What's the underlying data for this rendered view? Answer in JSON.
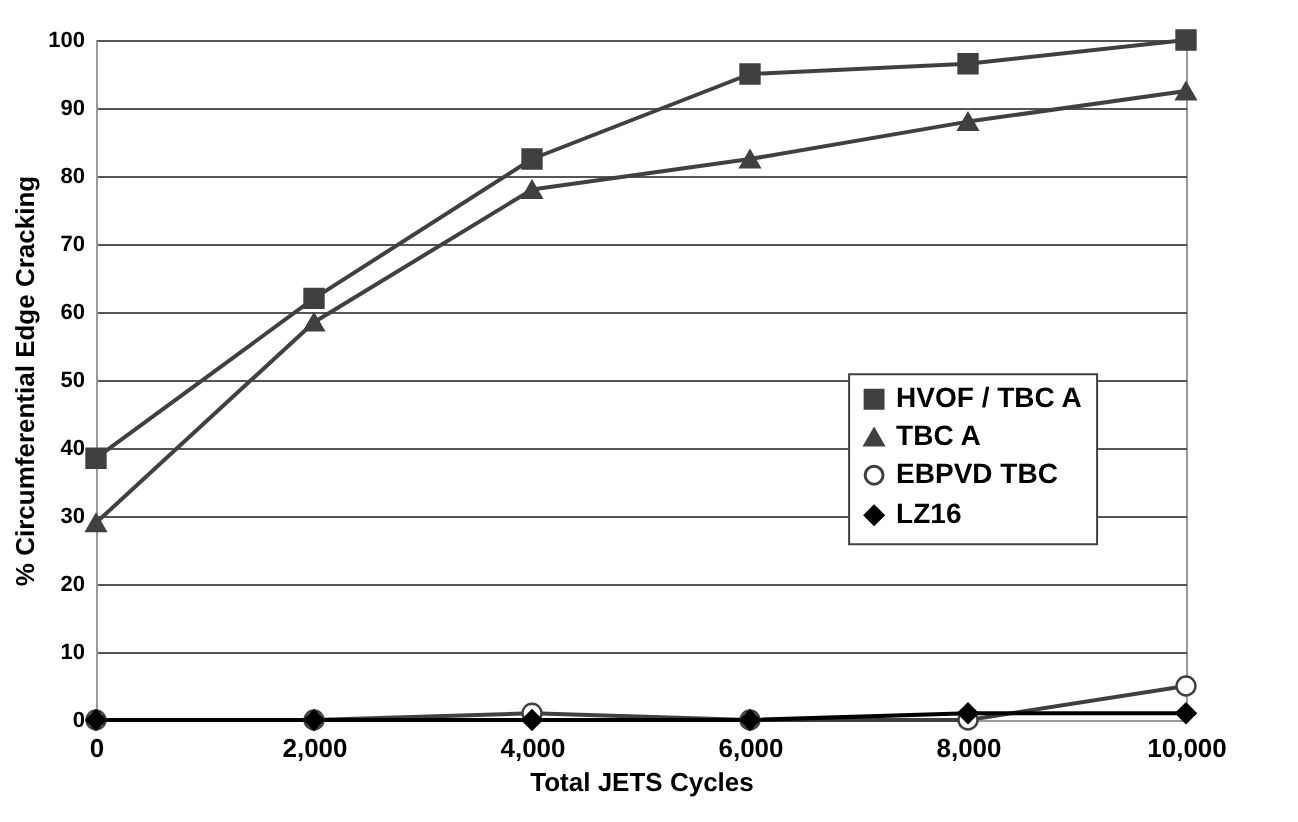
{
  "chart_data": {
    "type": "line",
    "xlabel": "Total JETS Cycles",
    "ylabel": "% Circumferential Edge Cracking",
    "x": [
      0,
      2000,
      4000,
      6000,
      8000,
      10000
    ],
    "xlim": [
      0,
      10000
    ],
    "xticks": [
      0,
      {
        "value": 2000,
        "label": "2,000"
      },
      {
        "value": 4000,
        "label": "4,000"
      },
      {
        "value": 6000,
        "label": "6,000"
      },
      {
        "value": 8000,
        "label": "8,000"
      },
      {
        "value": 10000,
        "label": "10,000"
      }
    ],
    "ylim": [
      0,
      100
    ],
    "yticks": [
      0,
      10,
      20,
      30,
      40,
      50,
      60,
      70,
      80,
      90,
      100
    ],
    "grid": "y",
    "legend": "right",
    "series": [
      {
        "name": "HVOF / TBC A",
        "color": "#404040",
        "marker": "square",
        "values": [
          38.5,
          62,
          82.5,
          95,
          96.5,
          100
        ]
      },
      {
        "name": "TBC A",
        "color": "#404040",
        "marker": "triangle",
        "values": [
          29,
          58.5,
          78,
          82.5,
          88,
          92.5
        ]
      },
      {
        "name": "EBPVD TBC",
        "color": "#404040",
        "marker": "circle",
        "values": [
          0,
          0,
          1,
          0,
          0,
          5
        ]
      },
      {
        "name": "LZ16",
        "color": "#000000",
        "marker": "diamond",
        "values": [
          0,
          0,
          0,
          0,
          1,
          1
        ]
      }
    ]
  }
}
